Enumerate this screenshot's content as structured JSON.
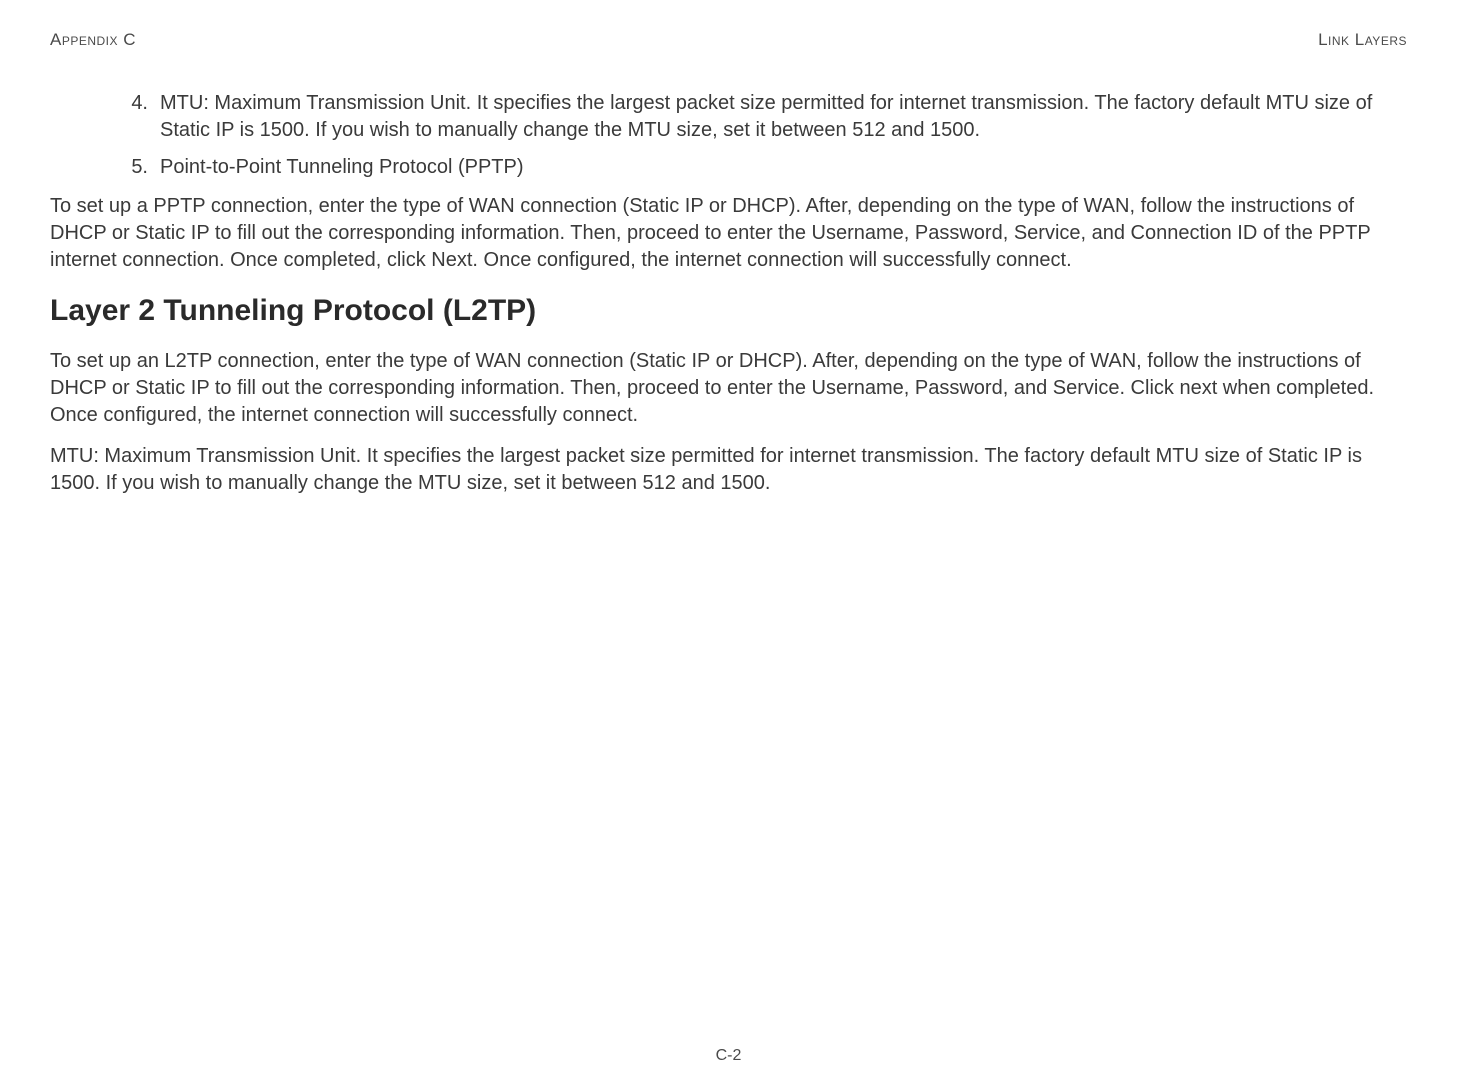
{
  "header": {
    "left": "Appendix C",
    "right": "Link Layers"
  },
  "list": {
    "items": [
      {
        "number": "4.",
        "text": "MTU: Maximum Transmission Unit. It specifies the largest packet size permitted for internet transmission. The factory default MTU size of Static IP is 1500. If you wish to manually change the MTU size, set it between 512 and 1500."
      },
      {
        "number": "5.",
        "text": "Point-to-Point Tunneling Protocol (PPTP)"
      }
    ]
  },
  "paragraphs": {
    "pptp_intro": "To set up a PPTP connection, enter the type of WAN connection (Static IP or DHCP). After, depending on the type of WAN, follow the instructions of DHCP or Static IP to fill out the corresponding information. Then, proceed to enter the Username, Password, Service, and Connection ID of the PPTP internet connection. Once completed, click Next. Once configured, the internet connection will successfully connect.",
    "l2tp_intro": "To set up an L2TP connection, enter the type of WAN connection (Static IP or DHCP). After, depending on the type of WAN, follow the instructions of DHCP or Static IP to fill out the corresponding information. Then, proceed to enter the Username, Password, and Service. Click next when completed. Once configured, the internet connection will successfully connect.",
    "l2tp_mtu": "MTU: Maximum Transmission Unit. It specifies the largest packet size permitted for internet transmission. The factory default MTU size of Static IP is 1500. If you wish to manually change the MTU size, set it between 512 and 1500."
  },
  "heading": {
    "l2tp": "Layer 2 Tunneling Protocol (L2TP)"
  },
  "footer": {
    "page_number": "C-2"
  }
}
